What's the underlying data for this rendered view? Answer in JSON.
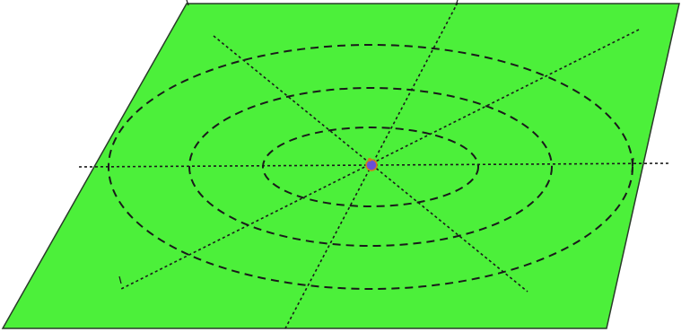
{
  "colors": {
    "plane_fill": "#4cf03a",
    "plane_edge": "#2a3a2a",
    "line": "#1a1a1a",
    "marker_fill": "#6a4fd8",
    "marker_edge": "#d07a20"
  },
  "diagram": {
    "plane_shape": "parallelogram",
    "ring_count": 3,
    "radial_line_count": 4,
    "center_marker": "point"
  }
}
